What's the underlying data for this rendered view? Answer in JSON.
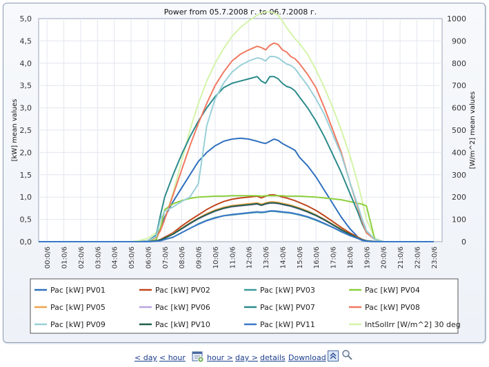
{
  "chart_data": {
    "type": "line",
    "title": "Power from 05.7.2008 г. to 06.7.2008 г.",
    "ylabel": "[kW] mean values",
    "y2label": "[W/m^2] mean values",
    "ylim": [
      0,
      5
    ],
    "y2lim": [
      0,
      1000
    ],
    "yticks": [
      "0,0",
      "0,5",
      "1,0",
      "1,5",
      "2,0",
      "2,5",
      "3,0",
      "3,5",
      "4,0",
      "4,5",
      "5,0"
    ],
    "y2ticks": [
      "0",
      "100",
      "200",
      "300",
      "400",
      "500",
      "600",
      "700",
      "800",
      "900",
      "1000"
    ],
    "xticks": [
      "00:0/6",
      "01:0/6",
      "02:0/6",
      "03:0/6",
      "04:0/6",
      "05:0/6",
      "06:0/6",
      "07:0/6",
      "08:0/6",
      "09:0/6",
      "10:0/6",
      "11:0/6",
      "12:0/6",
      "13:0/6",
      "14:0/6",
      "15:0/6",
      "16:0/6",
      "17:0/6",
      "18:0/6",
      "19:0/6",
      "20:0/6",
      "21:0/6",
      "22:0/6",
      "23:0/6"
    ],
    "grid": true,
    "legend_position": "bottom",
    "x_hours": [
      0,
      5.5,
      6,
      6.5,
      7,
      7.25,
      7.5,
      8,
      8.5,
      9,
      9.5,
      10,
      10.5,
      11,
      11.5,
      12,
      12.5,
      13,
      13.25,
      13.5,
      13.75,
      14,
      14.25,
      14.5,
      14.75,
      15,
      15.25,
      15.5,
      16,
      16.5,
      17,
      17.5,
      18,
      18.5,
      19,
      19.25,
      19.5,
      20,
      20.5,
      21,
      23.5
    ],
    "series": [
      {
        "name": "Pac [kW] PV01",
        "color": "#2e6fbe",
        "axis": "left",
        "values": [
          0,
          0,
          0,
          0.02,
          0.1,
          0.3,
          0.55,
          0.9,
          1.2,
          1.5,
          1.8,
          2.0,
          2.15,
          2.25,
          2.3,
          2.32,
          2.3,
          2.25,
          2.22,
          2.2,
          2.25,
          2.3,
          2.27,
          2.2,
          2.15,
          2.1,
          2.05,
          1.9,
          1.7,
          1.45,
          1.15,
          0.85,
          0.55,
          0.3,
          0.1,
          0.05,
          0.02,
          0,
          0,
          0,
          0
        ]
      },
      {
        "name": "Pac [kW] PV02",
        "color": "#c0461c",
        "axis": "left",
        "values": [
          0,
          0,
          0,
          0.005,
          0.02,
          0.05,
          0.1,
          0.2,
          0.35,
          0.48,
          0.6,
          0.72,
          0.82,
          0.9,
          0.95,
          0.98,
          1.0,
          1.02,
          0.98,
          1.02,
          1.05,
          1.05,
          1.03,
          1.0,
          0.98,
          0.95,
          0.92,
          0.88,
          0.8,
          0.7,
          0.58,
          0.45,
          0.32,
          0.2,
          0.1,
          0.05,
          0.02,
          0.005,
          0,
          0,
          0
        ]
      },
      {
        "name": "Pac [kW] PV03",
        "color": "#3c9a9a",
        "axis": "left",
        "values": [
          0,
          0,
          0,
          0,
          0.01,
          0.03,
          0.05,
          0.1,
          0.2,
          0.3,
          0.4,
          0.48,
          0.54,
          0.58,
          0.6,
          0.62,
          0.64,
          0.66,
          0.65,
          0.66,
          0.68,
          0.68,
          0.67,
          0.66,
          0.65,
          0.64,
          0.62,
          0.6,
          0.55,
          0.48,
          0.4,
          0.32,
          0.22,
          0.14,
          0.07,
          0.03,
          0.01,
          0,
          0,
          0,
          0
        ]
      },
      {
        "name": "Pac [kW] PV04",
        "color": "#8ccf3c",
        "axis": "left",
        "values": [
          0,
          0,
          0,
          0,
          0.05,
          0.3,
          0.72,
          0.85,
          0.92,
          0.97,
          1.0,
          1.01,
          1.02,
          1.02,
          1.03,
          1.03,
          1.03,
          1.03,
          1.02,
          1.03,
          1.03,
          1.03,
          1.03,
          1.03,
          1.02,
          1.02,
          1.02,
          1.02,
          1.01,
          1.0,
          0.98,
          0.96,
          0.94,
          0.9,
          0.86,
          0.84,
          0.8,
          0.05,
          0,
          0,
          0
        ]
      },
      {
        "name": "Pac [kW] PV05",
        "color": "#f0a24e",
        "axis": "left",
        "values": [
          0,
          0,
          0,
          0.005,
          0.02,
          0.04,
          0.08,
          0.18,
          0.3,
          0.42,
          0.53,
          0.63,
          0.71,
          0.77,
          0.81,
          0.83,
          0.85,
          0.87,
          0.84,
          0.87,
          0.89,
          0.89,
          0.88,
          0.86,
          0.84,
          0.82,
          0.79,
          0.76,
          0.69,
          0.6,
          0.5,
          0.39,
          0.28,
          0.17,
          0.09,
          0.04,
          0.02,
          0.005,
          0,
          0,
          0
        ]
      },
      {
        "name": "Pac [kW] PV06",
        "color": "#b8a4e0",
        "axis": "left",
        "values": [
          0,
          0,
          0,
          0.005,
          0.02,
          0.04,
          0.08,
          0.17,
          0.28,
          0.4,
          0.51,
          0.6,
          0.68,
          0.74,
          0.78,
          0.8,
          0.82,
          0.84,
          0.81,
          0.84,
          0.86,
          0.86,
          0.85,
          0.83,
          0.81,
          0.79,
          0.76,
          0.73,
          0.66,
          0.58,
          0.48,
          0.37,
          0.26,
          0.16,
          0.08,
          0.04,
          0.02,
          0.005,
          0,
          0,
          0
        ]
      },
      {
        "name": "Pac [kW] PV07",
        "color": "#2a8a8a",
        "axis": "left",
        "values": [
          0,
          0,
          0,
          0.02,
          0.15,
          0.6,
          1.0,
          1.5,
          1.95,
          2.35,
          2.7,
          3.0,
          3.25,
          3.45,
          3.55,
          3.6,
          3.65,
          3.7,
          3.6,
          3.55,
          3.7,
          3.7,
          3.65,
          3.55,
          3.48,
          3.45,
          3.38,
          3.25,
          3.0,
          2.7,
          2.35,
          1.95,
          1.55,
          1.1,
          0.65,
          0.4,
          0.2,
          0.05,
          0,
          0,
          0
        ]
      },
      {
        "name": "Pac [kW] PV08",
        "color": "#f07860",
        "axis": "left",
        "values": [
          0,
          0,
          0,
          0.02,
          0.1,
          0.25,
          0.5,
          1.05,
          1.6,
          2.15,
          2.65,
          3.1,
          3.5,
          3.8,
          4.05,
          4.2,
          4.3,
          4.38,
          4.35,
          4.3,
          4.4,
          4.45,
          4.42,
          4.3,
          4.25,
          4.15,
          4.1,
          4.0,
          3.75,
          3.45,
          3.0,
          2.5,
          2.0,
          1.35,
          0.75,
          0.45,
          0.2,
          0.05,
          0,
          0,
          0
        ]
      },
      {
        "name": "Pac [kW] PV09",
        "color": "#98d0d8",
        "axis": "left",
        "values": [
          0,
          0,
          0,
          0.02,
          0.12,
          0.5,
          0.68,
          0.78,
          0.9,
          1.0,
          1.3,
          2.6,
          3.2,
          3.55,
          3.8,
          3.95,
          4.05,
          4.12,
          4.1,
          4.05,
          4.15,
          4.15,
          4.12,
          4.05,
          3.98,
          3.95,
          3.88,
          3.75,
          3.5,
          3.2,
          2.85,
          2.4,
          1.95,
          1.35,
          0.8,
          0.5,
          0.25,
          0.05,
          0,
          0,
          0
        ]
      },
      {
        "name": "Pac [kW] PV10",
        "color": "#1e5e48",
        "axis": "left",
        "values": [
          0,
          0,
          0,
          0.005,
          0.02,
          0.04,
          0.08,
          0.17,
          0.29,
          0.41,
          0.52,
          0.61,
          0.69,
          0.75,
          0.79,
          0.81,
          0.83,
          0.85,
          0.82,
          0.85,
          0.87,
          0.87,
          0.86,
          0.84,
          0.82,
          0.8,
          0.77,
          0.74,
          0.67,
          0.59,
          0.49,
          0.38,
          0.27,
          0.17,
          0.08,
          0.04,
          0.02,
          0.005,
          0,
          0,
          0
        ]
      },
      {
        "name": "Pac [kW] PV11",
        "color": "#3a78c8",
        "axis": "left",
        "values": [
          0,
          0,
          0,
          0,
          0.01,
          0.02,
          0.05,
          0.1,
          0.2,
          0.3,
          0.39,
          0.47,
          0.53,
          0.58,
          0.61,
          0.63,
          0.65,
          0.67,
          0.66,
          0.67,
          0.69,
          0.69,
          0.68,
          0.67,
          0.66,
          0.65,
          0.63,
          0.61,
          0.56,
          0.49,
          0.41,
          0.32,
          0.23,
          0.14,
          0.07,
          0.03,
          0.01,
          0,
          0,
          0,
          0
        ]
      },
      {
        "name": "IntSolIrr [W/m^2] 30 deg",
        "color": "#d4f4a8",
        "axis": "right",
        "values": [
          0,
          0,
          5,
          15,
          40,
          60,
          100,
          220,
          360,
          500,
          620,
          720,
          800,
          865,
          920,
          960,
          990,
          1015,
          1025,
          1030,
          1030,
          1025,
          1015,
          990,
          960,
          935,
          910,
          890,
          840,
          770,
          690,
          600,
          500,
          390,
          260,
          180,
          100,
          15,
          0,
          0,
          0
        ]
      }
    ]
  },
  "footer": {
    "day_back": "< day",
    "hour_back": "< hour",
    "hour_fwd": "hour >",
    "day_fwd": "day >",
    "details": "details",
    "download": "Download"
  }
}
